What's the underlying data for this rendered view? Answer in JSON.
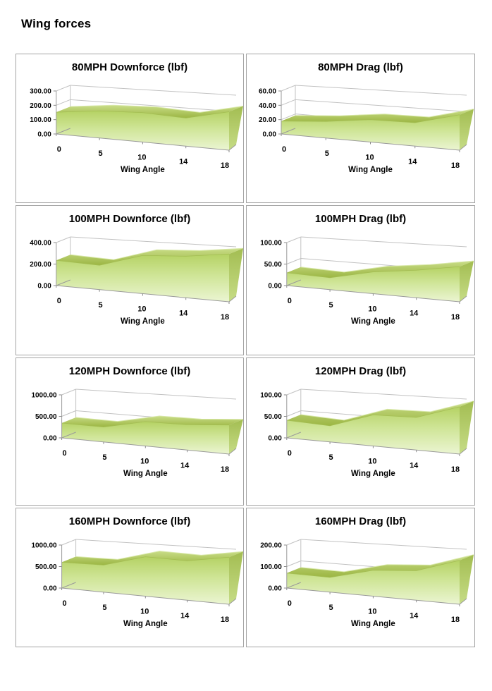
{
  "page": {
    "heading": "Wing forces"
  },
  "colors": {
    "panel_border": "#a4a4a4",
    "gridline": "#c2c2c2",
    "axis_line": "#9a9a9a",
    "tick": "#8a8a8a",
    "text": "#000000",
    "area_front_top": "#b5d264",
    "area_front_mid": "#cfe597",
    "area_front_bottom": "#ebf5d2",
    "area_band_light": "#c9dd88",
    "area_band_dark": "#9cb643",
    "area_side_dark": "#a3bd52",
    "area_side_light": "#c6dc86",
    "band_highlight": "#d8e8a8",
    "band_front_edge": "#a3bd52"
  },
  "chart_data": [
    {
      "type": "area",
      "title": "80MPH Downforce (lbf)",
      "xlabel": "Wing Angle",
      "categories": [
        "0",
        "5",
        "10",
        "14",
        "18"
      ],
      "values": [
        152,
        172,
        170,
        150,
        190
      ],
      "y_ticks": [
        {
          "label": "300.00",
          "value": 300
        },
        {
          "label": "200.00",
          "value": 200
        },
        {
          "label": "100.00",
          "value": 100
        },
        {
          "label": "0.00",
          "value": 0
        }
      ],
      "ylim": [
        0,
        300
      ],
      "grid": true,
      "legend": false,
      "style": "3d-area-green"
    },
    {
      "type": "area",
      "title": "80MPH Drag (lbf)",
      "xlabel": "Wing Angle",
      "categories": [
        "0",
        "5",
        "10",
        "14",
        "18"
      ],
      "values": [
        18,
        21,
        26,
        25,
        35
      ],
      "y_ticks": [
        {
          "label": "60.00",
          "value": 60
        },
        {
          "label": "40.00",
          "value": 40
        },
        {
          "label": "20.00",
          "value": 20
        },
        {
          "label": "0.00",
          "value": 0
        }
      ],
      "ylim": [
        0,
        60
      ],
      "grid": true,
      "legend": false,
      "style": "3d-area-green"
    },
    {
      "type": "area",
      "title": "100MPH Downforce (lbf)",
      "xlabel": "Wing Angle",
      "categories": [
        "0",
        "5",
        "10",
        "14",
        "18"
      ],
      "values": [
        235,
        205,
        295,
        295,
        315
      ],
      "y_ticks": [
        {
          "label": "400.00",
          "value": 400
        },
        {
          "label": "200.00",
          "value": 200
        },
        {
          "label": "0.00",
          "value": 0
        }
      ],
      "ylim": [
        0,
        400
      ],
      "grid": true,
      "legend": false,
      "style": "3d-area-green"
    },
    {
      "type": "area",
      "title": "100MPH Drag (lbf)",
      "xlabel": "Wing Angle",
      "categories": [
        "0",
        "5",
        "10",
        "14",
        "18"
      ],
      "values": [
        30,
        25,
        42,
        49,
        58
      ],
      "y_ticks": [
        {
          "label": "100.00",
          "value": 100
        },
        {
          "label": "50.00",
          "value": 50
        },
        {
          "label": "0.00",
          "value": 0
        }
      ],
      "ylim": [
        0,
        100
      ],
      "grid": true,
      "legend": false,
      "style": "3d-area-green"
    },
    {
      "type": "area",
      "title": "120MPH Downforce (lbf)",
      "xlabel": "Wing Angle",
      "categories": [
        "0",
        "5",
        "10",
        "14",
        "18"
      ],
      "values": [
        345,
        315,
        470,
        450,
        480
      ],
      "y_ticks": [
        {
          "label": "1000.00",
          "value": 1000
        },
        {
          "label": "500.00",
          "value": 500
        },
        {
          "label": "0.00",
          "value": 0
        }
      ],
      "ylim": [
        0,
        1000
      ],
      "grid": true,
      "legend": false,
      "style": "3d-area-green"
    },
    {
      "type": "area",
      "title": "120MPH Drag (lbf)",
      "xlabel": "Wing Angle",
      "categories": [
        "0",
        "5",
        "10",
        "14",
        "18"
      ],
      "values": [
        41,
        34,
        60,
        58,
        78
      ],
      "y_ticks": [
        {
          "label": "100.00",
          "value": 100
        },
        {
          "label": "50.00",
          "value": 50
        },
        {
          "label": "0.00",
          "value": 0
        }
      ],
      "ylim": [
        0,
        100
      ],
      "grid": true,
      "legend": false,
      "style": "3d-area-green"
    },
    {
      "type": "area",
      "title": "160MPH Downforce (lbf)",
      "xlabel": "Wing Angle",
      "categories": [
        "0",
        "5",
        "10",
        "14",
        "18"
      ],
      "values": [
        600,
        570,
        760,
        700,
        775
      ],
      "y_ticks": [
        {
          "label": "1000.00",
          "value": 1000
        },
        {
          "label": "500.00",
          "value": 500
        },
        {
          "label": "0.00",
          "value": 0
        }
      ],
      "ylim": [
        0,
        1000
      ],
      "grid": true,
      "legend": false,
      "style": "3d-area-green"
    },
    {
      "type": "area",
      "title": "160MPH Drag (lbf)",
      "xlabel": "Wing Angle",
      "categories": [
        "0",
        "5",
        "10",
        "14",
        "18"
      ],
      "values": [
        70,
        62,
        100,
        105,
        145
      ],
      "y_ticks": [
        {
          "label": "200.00",
          "value": 200
        },
        {
          "label": "100.00",
          "value": 100
        },
        {
          "label": "0.00",
          "value": 0
        }
      ],
      "ylim": [
        0,
        200
      ],
      "grid": true,
      "legend": false,
      "style": "3d-area-green"
    }
  ]
}
